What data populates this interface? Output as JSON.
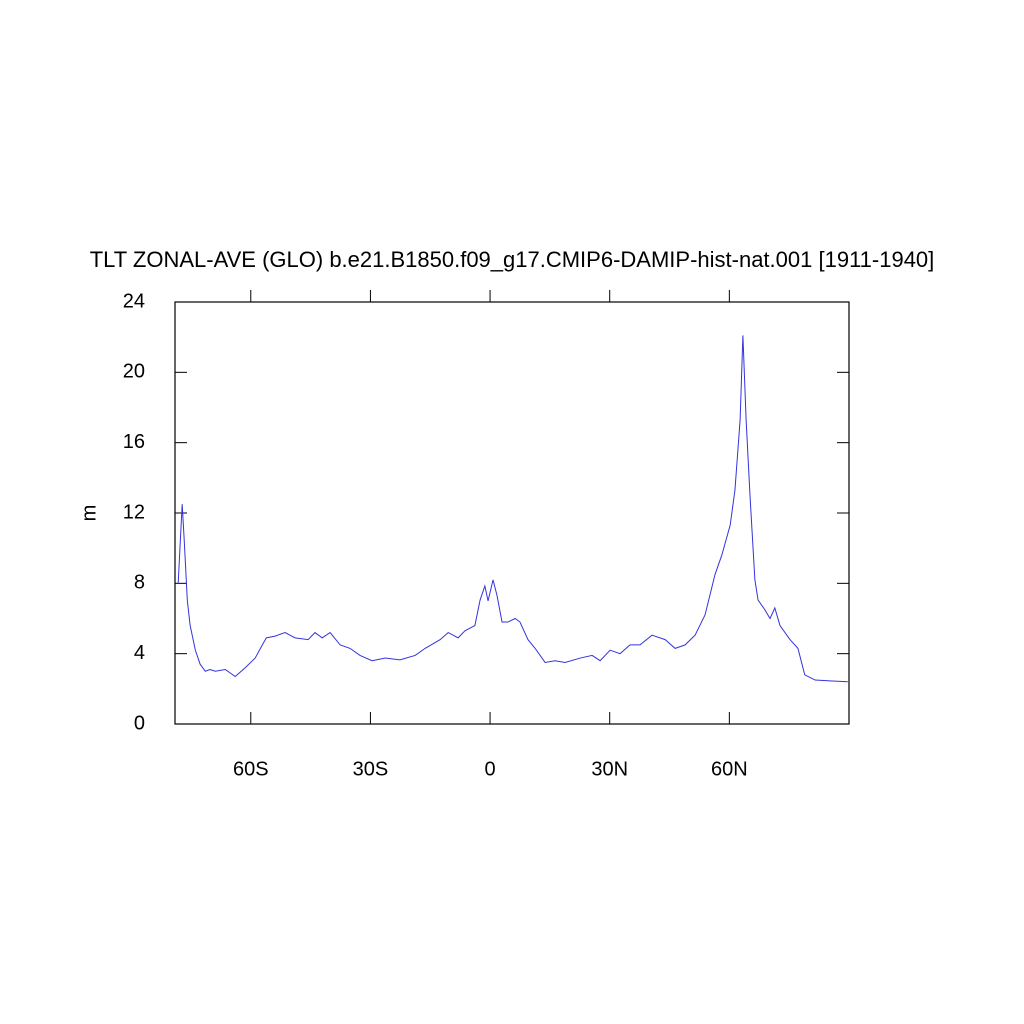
{
  "chart_data": {
    "type": "line",
    "title": "TLT ZONAL-AVE (GLO) b.e21.B1850.f09_g17.CMIP6-DAMIP-hist-nat.001 [1911-1940]",
    "y_label": "m",
    "xlim": [
      -79,
      90
    ],
    "ylim": [
      0,
      24
    ],
    "xticks": [
      {
        "value": -60,
        "label": "60S"
      },
      {
        "value": -30,
        "label": "30S"
      },
      0,
      {
        "value": 30,
        "label": "30N"
      },
      {
        "value": 60,
        "label": "60N"
      }
    ],
    "yticks": [
      0,
      4,
      8,
      12,
      16,
      20,
      24
    ],
    "grid": false,
    "series": [
      {
        "name": "TLT",
        "color": "#3333dd",
        "x": [
          -78.2,
          -77.2,
          -76.7,
          -75.9,
          -75.2,
          -73.9,
          -72.7,
          -71.4,
          -70.2,
          -68.9,
          -66.4,
          -63.9,
          -61.4,
          -58.9,
          -57.1,
          -56.1,
          -53.9,
          -51.4,
          -48.9,
          -45.6,
          -43.9,
          -42.1,
          -40.1,
          -37.6,
          -35.1,
          -32.6,
          -29.6,
          -26.3,
          -22.6,
          -18.8,
          -16.3,
          -12.5,
          -10.5,
          -8.0,
          -6.3,
          -3.8,
          -2.5,
          -1.3,
          -0.5,
          0.75,
          1.75,
          3.0,
          4.5,
          6.3,
          7.5,
          9.5,
          11.3,
          13.8,
          16.3,
          18.8,
          22.6,
          25.6,
          27.6,
          30.1,
          32.6,
          35.1,
          37.6,
          40.6,
          43.9,
          46.4,
          48.9,
          51.4,
          53.9,
          56.4,
          58.1,
          60.2,
          61.4,
          62.7,
          63.4,
          64.2,
          65.2,
          66.4,
          67.2,
          68.9,
          70.2,
          71.4,
          72.7,
          75.2,
          77.2,
          78.9,
          81.5,
          85.2,
          89.7
        ],
        "values": [
          8.0,
          12.5,
          10.5,
          7.0,
          5.6,
          4.2,
          3.4,
          3.0,
          3.1,
          3.0,
          3.1,
          2.7,
          3.2,
          3.75,
          4.5,
          4.9,
          5.0,
          5.2,
          4.9,
          4.8,
          5.2,
          4.9,
          5.2,
          4.5,
          4.3,
          3.9,
          3.6,
          3.75,
          3.65,
          3.9,
          4.3,
          4.8,
          5.2,
          4.9,
          5.3,
          5.6,
          7.05,
          7.85,
          7.0,
          8.2,
          7.3,
          5.8,
          5.8,
          6.0,
          5.8,
          4.8,
          4.3,
          3.5,
          3.6,
          3.5,
          3.75,
          3.9,
          3.6,
          4.2,
          4.0,
          4.5,
          4.5,
          5.05,
          4.8,
          4.3,
          4.5,
          5.05,
          6.2,
          8.5,
          9.6,
          11.3,
          13.3,
          17.3,
          22.1,
          17.3,
          12.9,
          8.2,
          7.05,
          6.5,
          6.0,
          6.6,
          5.6,
          4.8,
          4.3,
          2.8,
          2.5,
          2.45,
          2.4
        ]
      }
    ]
  }
}
